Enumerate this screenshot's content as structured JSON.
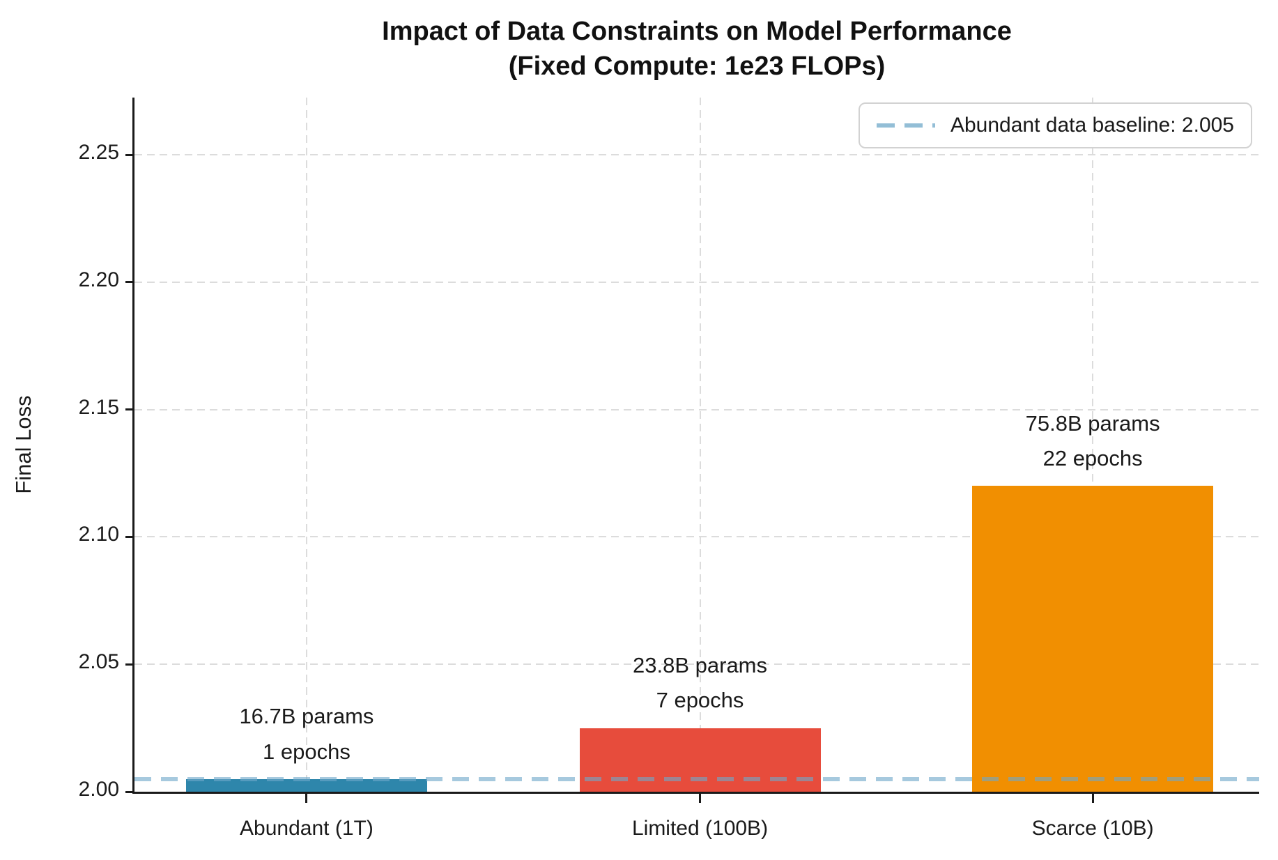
{
  "title": {
    "line1": "Impact of Data Constraints on Model Performance",
    "line2": "(Fixed Compute: 1e23 FLOPs)"
  },
  "legend": {
    "label": "Abundant data baseline: 2.005"
  },
  "chart_data": {
    "type": "bar",
    "title": "Impact of Data Constraints on Model Performance (Fixed Compute: 1e23 FLOPs)",
    "xlabel": "",
    "ylabel": "Final Loss",
    "ylim": [
      2.0,
      2.2725
    ],
    "yticks": [
      2.0,
      2.05,
      2.1,
      2.15,
      2.2,
      2.25
    ],
    "ytick_labels": [
      "2.00",
      "2.05",
      "2.10",
      "2.15",
      "2.20",
      "2.25"
    ],
    "grid": "dashed gridlines on both axes, light gray",
    "legend_position": "upper right",
    "categories": [
      "Abundant (1T)",
      "Limited (100B)",
      "Scarce (10B)"
    ],
    "values": [
      2.005,
      2.025,
      2.12
    ],
    "bar_colors": [
      "#2E86AB",
      "#E74C3C",
      "#F18F01"
    ],
    "bar_annotations": [
      [
        "16.7B params",
        "1 epochs"
      ],
      [
        "23.8B params",
        "7 epochs"
      ],
      [
        "75.8B params",
        "22 epochs"
      ]
    ],
    "baseline": {
      "value": 2.005,
      "label": "Abundant data baseline: 2.005",
      "color": "#A9CCE3",
      "style": "dashed"
    }
  }
}
